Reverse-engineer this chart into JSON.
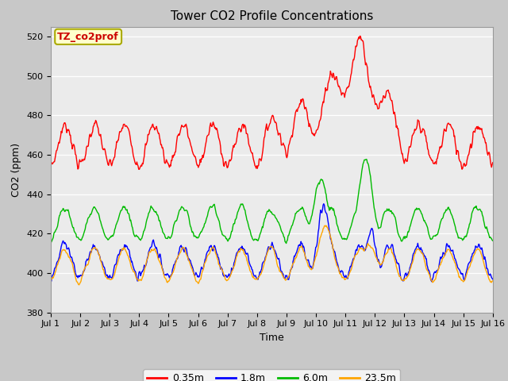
{
  "title": "Tower CO2 Profile Concentrations",
  "xlabel": "Time",
  "ylabel": "CO2 (ppm)",
  "ylim": [
    380,
    525
  ],
  "yticks": [
    380,
    400,
    420,
    440,
    460,
    480,
    500,
    520
  ],
  "xtick_labels": [
    "Jul 1",
    "Jul 2",
    "Jul 3",
    "Jul 4",
    "Jul 5",
    "Jul 6",
    "Jul 7",
    "Jul 8",
    "Jul 9",
    "Jul 10",
    "Jul 11",
    "Jul 12",
    "Jul 13",
    "Jul 14",
    "Jul 15",
    "Jul 16"
  ],
  "colors": {
    "0.35m": "#ff0000",
    "1.8m": "#0000ff",
    "6.0m": "#00bb00",
    "23.5m": "#ffa500"
  },
  "annotation_text": "TZ_co2prof",
  "annotation_color": "#cc0000",
  "annotation_bg": "#ffffcc",
  "annotation_border": "#aaaa00",
  "fig_bg": "#c8c8c8",
  "plot_bg": "#ebebeb",
  "linewidth": 1.0,
  "title_fontsize": 11,
  "axis_fontsize": 9,
  "tick_fontsize": 8
}
